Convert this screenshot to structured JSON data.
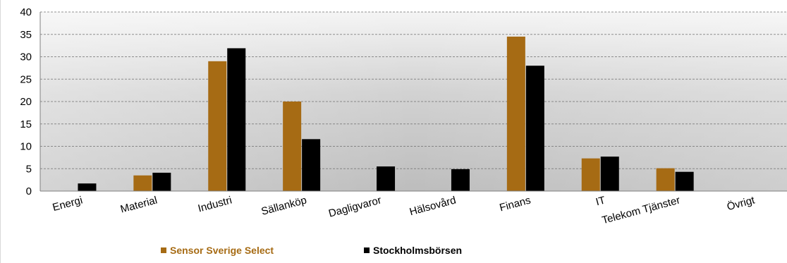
{
  "chart_data": {
    "type": "bar",
    "categories": [
      "Energi",
      "Material",
      "Industri",
      "Sällanköp",
      "Dagligvaror",
      "Hälsovård",
      "Finans",
      "IT",
      "Telekom Tjänster",
      "Övrigt"
    ],
    "series": [
      {
        "name": "Sensor Sverige Select",
        "color": "#a66b14",
        "values": [
          0,
          3.5,
          29,
          20,
          0,
          0,
          34.5,
          7.3,
          5.1,
          0
        ]
      },
      {
        "name": "Stockholmsbörsen",
        "color": "#000000",
        "values": [
          1.7,
          4.1,
          31.9,
          11.6,
          5.5,
          4.9,
          28,
          7.7,
          4.3,
          0
        ]
      }
    ],
    "yticks": [
      "0",
      "5",
      "10",
      "15",
      "20",
      "25",
      "30",
      "35",
      "40"
    ],
    "ylim": [
      0,
      40
    ],
    "grid": true,
    "legend_position": "bottom",
    "title": "",
    "xlabel": "",
    "ylabel": ""
  }
}
